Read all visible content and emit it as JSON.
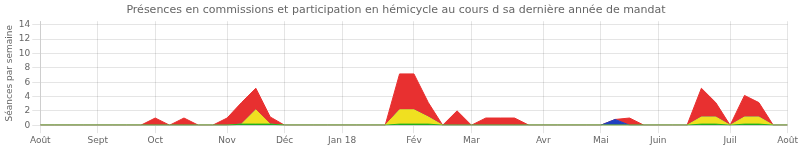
{
  "chart_data": {
    "type": "area",
    "title": "Présences en commissions et participation en hémicycle au cours d sa dernière année de mandat",
    "y_label": "Séances par semaine",
    "x": [
      0,
      1,
      2,
      3,
      4,
      5,
      6,
      7,
      8,
      9,
      10,
      11,
      12,
      13,
      14,
      15,
      16,
      17,
      18,
      19,
      20,
      21,
      22,
      23,
      24,
      25,
      26,
      27,
      28,
      29,
      30,
      31,
      32,
      33,
      34,
      35,
      36,
      37,
      38,
      39,
      40,
      41,
      42,
      43,
      44,
      45,
      46,
      47,
      48,
      49,
      50,
      51,
      52
    ],
    "series": [
      {
        "color": "#20b020",
        "values": [
          0,
          0,
          0,
          0,
          0,
          0,
          0,
          0,
          0,
          0,
          0,
          0,
          0,
          0,
          0.15,
          0.15,
          0.15,
          0,
          0,
          0,
          0,
          0,
          0,
          0,
          0,
          0.15,
          0.15,
          0.15,
          0,
          0,
          0,
          0,
          0,
          0,
          0,
          0,
          0,
          0,
          0,
          0,
          0,
          0,
          0,
          0,
          0,
          0,
          0.15,
          0.15,
          0,
          0.15,
          0.15,
          0,
          0
        ]
      },
      {
        "color": "#f0e020",
        "values": [
          0,
          0,
          0,
          0,
          0,
          0,
          0,
          0,
          0,
          0,
          0,
          0,
          0,
          0,
          0,
          2,
          0,
          0,
          0,
          0,
          0,
          0,
          0,
          0,
          0,
          2,
          2,
          1,
          0,
          0,
          0,
          0,
          0,
          0,
          0,
          0,
          0,
          0,
          0,
          0,
          0,
          0,
          0,
          0,
          0,
          0,
          1,
          1,
          0,
          1,
          1,
          0,
          0
        ]
      },
      {
        "color": "#2040c0",
        "values": [
          0,
          0,
          0,
          0,
          0,
          0,
          0,
          0,
          0,
          0,
          0,
          0,
          0,
          0,
          0,
          0,
          0,
          0,
          0,
          0,
          0,
          0,
          0,
          0,
          0,
          0,
          0,
          0,
          0,
          0,
          0,
          0,
          0,
          0,
          0,
          0,
          0,
          0,
          0,
          0,
          0.8,
          0,
          0,
          0,
          0,
          0,
          0,
          0,
          0,
          0,
          0,
          0,
          0
        ]
      },
      {
        "color": "#e83030",
        "values": [
          0,
          0,
          0,
          0,
          0,
          0,
          0,
          0,
          1,
          0,
          1,
          0,
          0,
          1,
          3,
          3,
          1,
          0,
          0,
          0,
          0,
          0,
          0,
          0,
          0,
          5,
          5,
          2,
          0,
          2,
          0,
          1,
          1,
          1,
          0,
          0,
          0,
          0,
          0,
          0,
          0,
          1,
          0,
          0,
          0,
          0,
          4,
          2,
          0,
          3,
          2,
          0,
          0
        ]
      }
    ],
    "stacked": true,
    "xlim": [
      0,
      52
    ],
    "xticks": [
      {
        "value": 0,
        "label": "Août"
      },
      {
        "value": 4,
        "label": "Sept"
      },
      {
        "value": 8,
        "label": "Oct"
      },
      {
        "value": 13,
        "label": "Nov"
      },
      {
        "value": 17,
        "label": "Déc"
      },
      {
        "value": 21,
        "label": "Jan 18"
      },
      {
        "value": 26,
        "label": "Fév"
      },
      {
        "value": 30,
        "label": "Mar"
      },
      {
        "value": 35,
        "label": "Avr"
      },
      {
        "value": 39,
        "label": "Mai"
      },
      {
        "value": 43,
        "label": "Juin"
      },
      {
        "value": 48,
        "label": "Juil"
      },
      {
        "value": 52,
        "label": "Août"
      }
    ],
    "ylim": [
      0,
      14.5
    ],
    "yticks": [
      0,
      2,
      4,
      6,
      8,
      10,
      12,
      14
    ],
    "grid": true
  }
}
